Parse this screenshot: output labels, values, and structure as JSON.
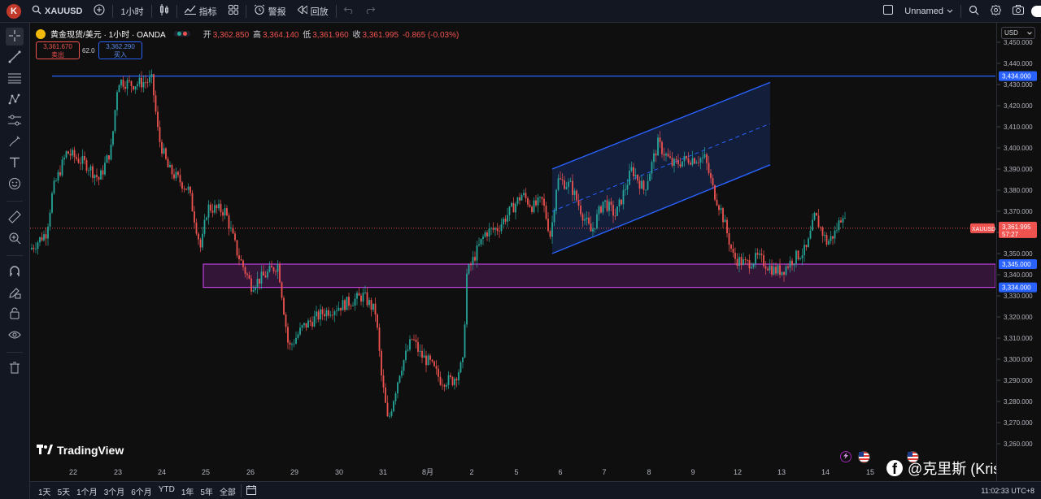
{
  "topbar": {
    "avatar_letter": "K",
    "symbol": "XAUUSD",
    "interval": "1小时",
    "indicators_label": "指标",
    "alert_label": "警报",
    "replay_label": "回放",
    "layout_name": "Unnamed"
  },
  "legend": {
    "title": "黄金现货/美元 · 1小时 · OANDA",
    "open_label": "开",
    "open": "3,362.850",
    "high_label": "高",
    "high": "3,364.140",
    "low_label": "低",
    "low": "3,361.960",
    "close_label": "收",
    "close": "3,361.995",
    "change": "-0.865 (-0.03%)"
  },
  "trade": {
    "sell_price": "3,361.670",
    "sell_label": "卖出",
    "spread": "62.0",
    "buy_price": "3,362.290",
    "buy_label": "买入"
  },
  "price_axis": {
    "currency": "USD",
    "ticks": [
      "3,450.000",
      "3,440.000",
      "3,430.000",
      "3,420.000",
      "3,410.000",
      "3,400.000",
      "3,390.000",
      "3,380.000",
      "3,370.000",
      "3,360.000",
      "3,350.000",
      "3,340.000",
      "3,330.000",
      "3,320.000",
      "3,310.000",
      "3,300.000",
      "3,290.000",
      "3,280.000",
      "3,270.000",
      "3,260.000"
    ],
    "tags": [
      {
        "label": "3,434.000",
        "color": "#2962ff"
      },
      {
        "label": "3,345.000",
        "color": "#2962ff"
      },
      {
        "label": "3,334.000",
        "color": "#2962ff"
      }
    ],
    "symbol_tag": "XAUUSD",
    "last_price": "3,361.995",
    "countdown": "57:27"
  },
  "time_axis": {
    "labels": [
      "22",
      "23",
      "24",
      "25",
      "26",
      "29",
      "30",
      "31",
      "8月",
      "2",
      "5",
      "6",
      "7",
      "8",
      "9",
      "12",
      "13",
      "14",
      "15"
    ]
  },
  "bottom": {
    "ranges": [
      "1天",
      "5天",
      "1个月",
      "3个月",
      "6个月",
      "YTD",
      "1年",
      "5年",
      "全部"
    ],
    "clock": "11:02:33 UTC+8"
  },
  "watermark": "TradingView",
  "author": "@克里斯 (Kris)",
  "colors": {
    "up": "#26a69a",
    "down": "#ef5350",
    "line": "#2962ff",
    "zone": "#9c27b0",
    "bg": "#0f0f0f"
  },
  "chart_data": {
    "type": "candlestick",
    "ylim": [
      3260,
      3450
    ],
    "x": [
      "22",
      "23",
      "24",
      "25",
      "26",
      "29",
      "30",
      "31",
      "8月",
      "2",
      "5",
      "6",
      "7",
      "8",
      "9",
      "12",
      "13",
      "14"
    ],
    "close_approx": [
      3395,
      3432,
      3392,
      3372,
      3340,
      3305,
      3325,
      3275,
      3295,
      3348,
      3370,
      3355,
      3375,
      3395,
      3385,
      3345,
      3342,
      3365
    ],
    "horizontal_line": 3434,
    "support_zone": [
      3334,
      3345
    ],
    "channel": {
      "lower_start": 3350,
      "lower_end": 3392,
      "upper_start": 3390,
      "upper_end": 3431
    },
    "last_price": 3361.995
  }
}
